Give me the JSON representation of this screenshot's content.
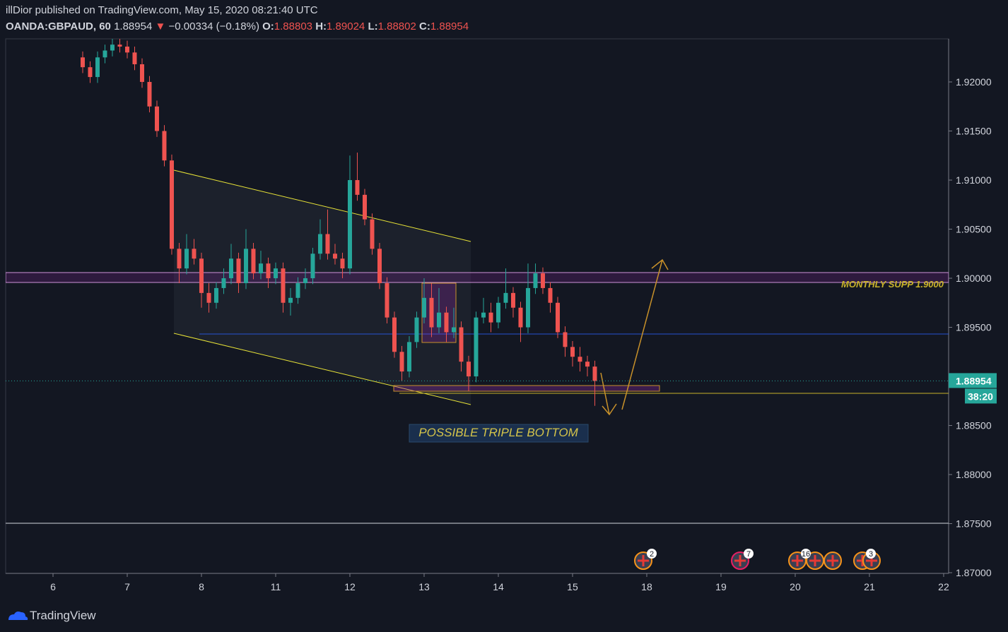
{
  "header": {
    "published": "illDior published on TradingView.com, May 15, 2020 08:21:40 UTC",
    "symbol": "OANDA:GBPAUD, 60",
    "last": "1.88954",
    "arrow": "▼",
    "change": "−0.00334 (−0.18%)",
    "o_label": "O:",
    "o": "1.88803",
    "h_label": "H:",
    "h": "1.89024",
    "l_label": "L:",
    "l": "1.88802",
    "c_label": "C:",
    "c": "1.88954"
  },
  "chart_data": {
    "type": "candlestick",
    "up_color": "#26a69a",
    "down_color": "#ef5350",
    "x": [
      0.4,
      0.5,
      0.6,
      0.7,
      0.8,
      0.9,
      1.0,
      1.1,
      1.2,
      1.3,
      1.4,
      1.5,
      1.6,
      1.7,
      1.8,
      1.9,
      2.0,
      2.1,
      2.2,
      2.3,
      2.4,
      2.5,
      2.6,
      2.7,
      2.8,
      2.9,
      3.0,
      3.1,
      3.2,
      3.3,
      3.4,
      3.5,
      3.6,
      3.7,
      3.8,
      3.9,
      4.0,
      4.1,
      4.2,
      4.3,
      4.4,
      4.5,
      4.6,
      4.7,
      4.8,
      4.9,
      5.0,
      5.1,
      5.2,
      5.3,
      5.4,
      5.5,
      5.6,
      5.7,
      5.8,
      5.9,
      6.0,
      6.1,
      6.2,
      6.3,
      6.4,
      6.5,
      6.6,
      6.7,
      6.8,
      6.9,
      7.0,
      7.1,
      7.2,
      7.3
    ],
    "open": [
      1.9225,
      1.9215,
      1.9205,
      1.9225,
      1.9232,
      1.9238,
      1.9236,
      1.923,
      1.9218,
      1.92,
      1.9175,
      1.915,
      1.912,
      1.903,
      1.901,
      1.903,
      1.902,
      1.8985,
      1.8975,
      1.899,
      1.9,
      1.902,
      1.8995,
      1.903,
      1.9005,
      1.9015,
      1.9,
      1.901,
      1.8975,
      1.898,
      1.8995,
      1.9,
      1.9025,
      1.9045,
      1.9025,
      1.902,
      1.901,
      1.91,
      1.9085,
      1.906,
      1.903,
      1.8995,
      1.896,
      1.8925,
      1.8905,
      1.8935,
      1.896,
      1.898,
      1.895,
      1.8965,
      1.8945,
      1.895,
      1.8915,
      1.89,
      1.896,
      1.8965,
      1.8955,
      1.8975,
      1.8985,
      1.897,
      1.895,
      1.899,
      1.9005,
      1.899,
      1.8975,
      1.8945,
      1.893,
      1.892,
      1.8915,
      1.891
    ],
    "high": [
      1.9231,
      1.9221,
      1.9231,
      1.9238,
      1.9244,
      1.9244,
      1.9242,
      1.9236,
      1.9224,
      1.9206,
      1.9181,
      1.9156,
      1.9126,
      1.9036,
      1.9045,
      1.904,
      1.9026,
      1.8995,
      1.8996,
      1.901,
      1.9035,
      1.9026,
      1.905,
      1.9036,
      1.9028,
      1.9021,
      1.9016,
      1.9016,
      1.899,
      1.9001,
      1.901,
      1.9031,
      1.906,
      1.907,
      1.9035,
      1.9026,
      1.9125,
      1.9128,
      1.9091,
      1.9066,
      1.9036,
      1.9001,
      1.8966,
      1.8931,
      1.8941,
      1.8966,
      1.9,
      1.8995,
      1.899,
      1.8971,
      1.897,
      1.8956,
      1.8921,
      1.8966,
      1.898,
      1.8975,
      1.8981,
      1.901,
      1.8991,
      1.8976,
      1.9015,
      1.9015,
      1.9011,
      1.8996,
      1.8981,
      1.8951,
      1.8936,
      1.893,
      1.8921,
      1.8916
    ],
    "low": [
      1.9209,
      1.9199,
      1.9199,
      1.9219,
      1.9226,
      1.923,
      1.9224,
      1.9212,
      1.9194,
      1.9169,
      1.9144,
      1.9114,
      1.9024,
      1.8995,
      1.9004,
      1.9014,
      1.897,
      1.8965,
      1.8969,
      1.8984,
      1.8994,
      1.8985,
      1.8989,
      1.8999,
      1.8999,
      1.899,
      1.8994,
      1.8965,
      1.8962,
      1.8974,
      1.8989,
      1.8994,
      1.9019,
      1.9019,
      1.9014,
      1.9,
      1.9004,
      1.9079,
      1.9054,
      1.9024,
      1.8989,
      1.8954,
      1.8919,
      1.8895,
      1.8899,
      1.8929,
      1.8954,
      1.894,
      1.8944,
      1.8935,
      1.8939,
      1.8905,
      1.8885,
      1.8894,
      1.8954,
      1.8945,
      1.8949,
      1.8969,
      1.896,
      1.8935,
      1.8944,
      1.8984,
      1.8984,
      1.8965,
      1.8939,
      1.892,
      1.891,
      1.8905,
      1.89,
      1.887
    ],
    "close": [
      1.9215,
      1.9205,
      1.9225,
      1.9232,
      1.9238,
      1.9236,
      1.923,
      1.9218,
      1.92,
      1.9175,
      1.915,
      1.912,
      1.903,
      1.901,
      1.903,
      1.902,
      1.8985,
      1.8975,
      1.899,
      1.9,
      1.902,
      1.8995,
      1.903,
      1.9005,
      1.9015,
      1.9,
      1.901,
      1.8975,
      1.898,
      1.8995,
      1.9,
      1.9025,
      1.9045,
      1.9025,
      1.902,
      1.901,
      1.91,
      1.9085,
      1.906,
      1.903,
      1.8995,
      1.896,
      1.8925,
      1.8905,
      1.8935,
      1.896,
      1.898,
      1.895,
      1.8965,
      1.8945,
      1.895,
      1.8915,
      1.89,
      1.896,
      1.8965,
      1.8955,
      1.8975,
      1.8985,
      1.897,
      1.895,
      1.899,
      1.9005,
      1.899,
      1.8975,
      1.8945,
      1.893,
      1.892,
      1.8915,
      1.891,
      1.88954
    ],
    "xlim": [
      -0.638,
      12.067
    ],
    "ylim": [
      1.86993,
      1.92439
    ],
    "xticks": [
      {
        "value": 0,
        "label": "6"
      },
      {
        "value": 1,
        "label": "7"
      },
      {
        "value": 2,
        "label": "8"
      },
      {
        "value": 3,
        "label": "11"
      },
      {
        "value": 4,
        "label": "12"
      },
      {
        "value": 5,
        "label": "13"
      },
      {
        "value": 6,
        "label": "14"
      },
      {
        "value": 7,
        "label": "15"
      },
      {
        "value": 8,
        "label": "18"
      },
      {
        "value": 9,
        "label": "19"
      },
      {
        "value": 10,
        "label": "20"
      },
      {
        "value": 11,
        "label": "21"
      },
      {
        "value": 12,
        "label": "22"
      }
    ],
    "yticks": [
      {
        "value": 1.87,
        "label": "1.87000"
      },
      {
        "value": 1.875,
        "label": "1.87500"
      },
      {
        "value": 1.88,
        "label": "1.88000"
      },
      {
        "value": 1.885,
        "label": "1.88500"
      },
      {
        "value": 1.89,
        "label": "1.89000"
      },
      {
        "value": 1.895,
        "label": "1.89500"
      },
      {
        "value": 1.9,
        "label": "1.90000"
      },
      {
        "value": 1.905,
        "label": "1.90500"
      },
      {
        "value": 1.91,
        "label": "1.91000"
      },
      {
        "value": 1.915,
        "label": "1.91500"
      },
      {
        "value": 1.92,
        "label": "1.92000"
      }
    ],
    "price_label": "1.88954",
    "countdown": "38:20",
    "annotations": [
      "MONTHLY SUPP 1.9000",
      "POSSIBLE TRIPLE BOTTOM"
    ],
    "events": [
      "2",
      "7",
      "16",
      "3"
    ]
  },
  "footer": "TradingView"
}
